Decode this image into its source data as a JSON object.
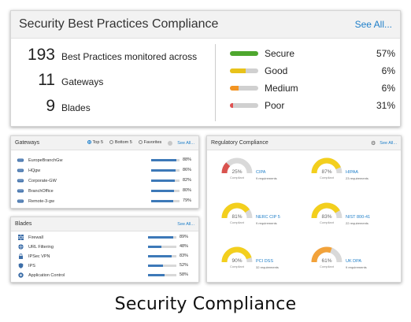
{
  "top": {
    "title": "Security Best Practices Compliance",
    "see_all": "See All...",
    "stats": [
      {
        "value": "193",
        "label": "Best Practices monitored across"
      },
      {
        "value": "11",
        "label": "Gateways"
      },
      {
        "value": "9",
        "label": "Blades"
      }
    ],
    "statuses": [
      {
        "label": "Secure",
        "percent": "57%",
        "fill": 1.0,
        "color": "#4ea72e"
      },
      {
        "label": "Good",
        "percent": "6%",
        "fill": 0.55,
        "color": "#e8c21a"
      },
      {
        "label": "Medium",
        "percent": "6%",
        "fill": 0.3,
        "color": "#f29423"
      },
      {
        "label": "Poor",
        "percent": "31%",
        "fill": 0.12,
        "color": "#e05252"
      }
    ]
  },
  "gateways": {
    "title": "Gateways",
    "options": [
      "Top 5",
      "Bottom 5",
      "Favorites"
    ],
    "see_all": "See All...",
    "items": [
      {
        "name": "EuropeBranchGw",
        "percent": "88%",
        "value": 0.88
      },
      {
        "name": "HQgw",
        "percent": "86%",
        "value": 0.86
      },
      {
        "name": "Corporate-GW",
        "percent": "82%",
        "value": 0.82
      },
      {
        "name": "BranchOffice",
        "percent": "80%",
        "value": 0.8
      },
      {
        "name": "Remote-3-gw",
        "percent": "79%",
        "value": 0.79
      }
    ]
  },
  "blades": {
    "title": "Blades",
    "see_all": "See All...",
    "items": [
      {
        "name": "Firewall",
        "percent": "89%",
        "value": 0.89,
        "icon": "firewall-icon"
      },
      {
        "name": "URL Filtering",
        "percent": "48%",
        "value": 0.48,
        "icon": "globe-icon"
      },
      {
        "name": "IPSec VPN",
        "percent": "83%",
        "value": 0.83,
        "icon": "lock-icon"
      },
      {
        "name": "IPS",
        "percent": "52%",
        "value": 0.52,
        "icon": "shield-icon"
      },
      {
        "name": "Application Control",
        "percent": "58%",
        "value": 0.58,
        "icon": "app-control-icon"
      }
    ]
  },
  "regulatory": {
    "title": "Regulatory Compliance",
    "see_all": "See All...",
    "compliant_label": "Compliant",
    "gauges": [
      {
        "name": "CIPA",
        "percent": "25%",
        "value": 0.25,
        "requirements": "9 requirements",
        "color": "#d9534f"
      },
      {
        "name": "HIPAA",
        "percent": "87%",
        "value": 0.87,
        "requirements": "23 requirements",
        "color": "#f3cf1d"
      },
      {
        "name": "NERC CIP 5",
        "percent": "81%",
        "value": 0.81,
        "requirements": "9 requirements",
        "color": "#f3cf1d"
      },
      {
        "name": "NIST 800-41",
        "percent": "83%",
        "value": 0.83,
        "requirements": "22 requirements",
        "color": "#f3cf1d"
      },
      {
        "name": "PCI DSS",
        "percent": "90%",
        "value": 0.9,
        "requirements": "32 requirements",
        "color": "#f3cf1d"
      },
      {
        "name": "UK DPA",
        "percent": "61%",
        "value": 0.61,
        "requirements": "9 requirements",
        "color": "#f2a23a"
      }
    ]
  },
  "caption": "Security Compliance"
}
